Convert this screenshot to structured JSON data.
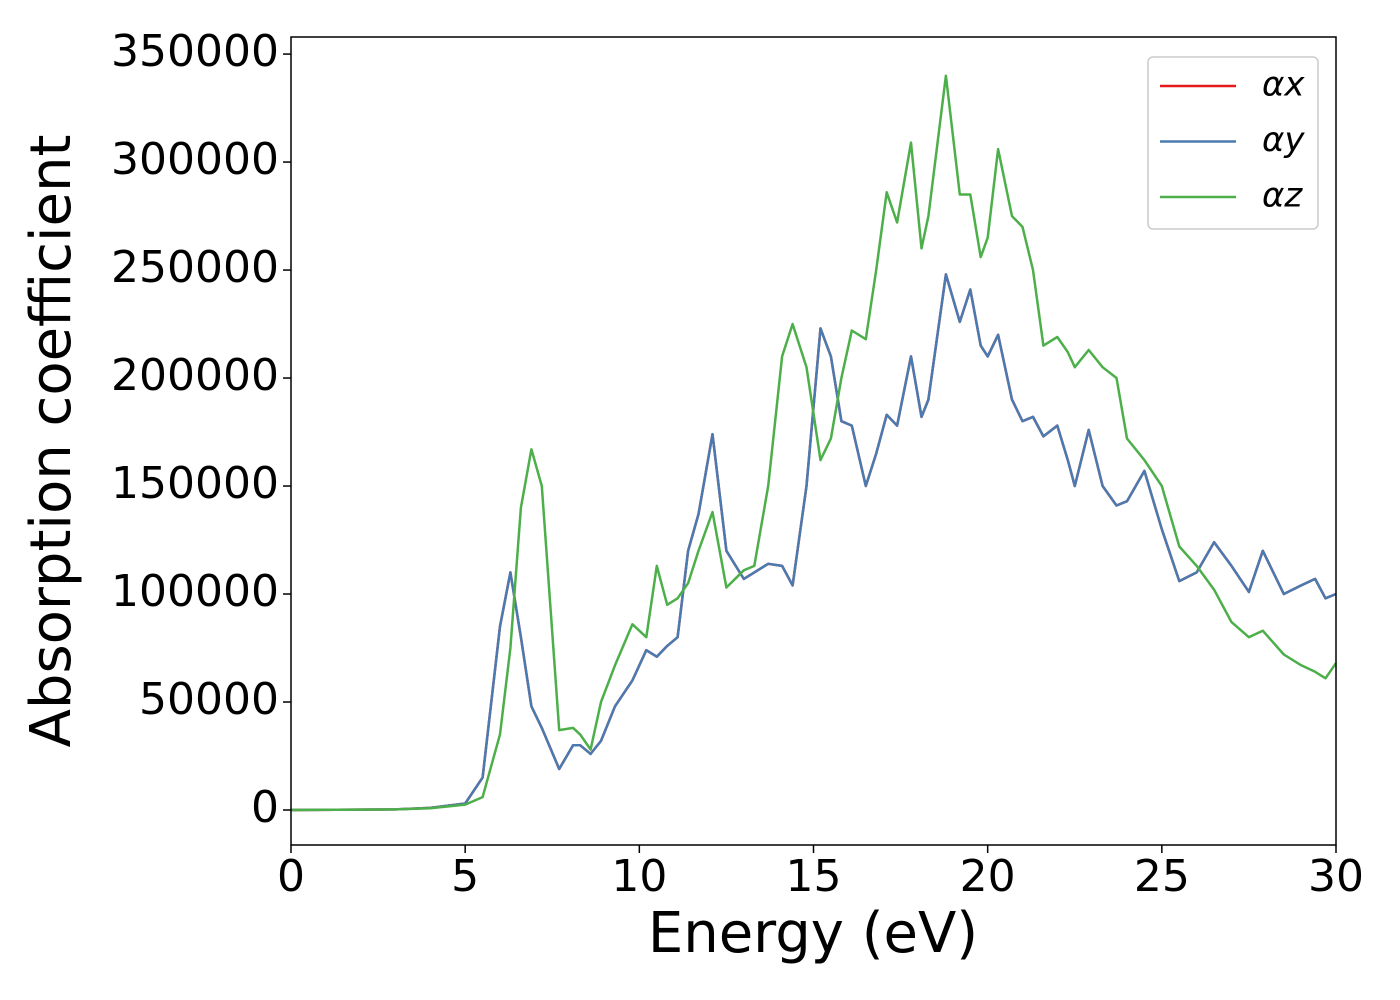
{
  "chart_data": {
    "type": "line",
    "xlabel": "Energy (eV)",
    "ylabel": "Absorption coefficient",
    "x": [
      0,
      3,
      4,
      5,
      5.5,
      6.0,
      6.3,
      6.6,
      6.9,
      7.2,
      7.7,
      8.1,
      8.3,
      8.6,
      8.9,
      9.3,
      9.8,
      10.2,
      10.5,
      10.8,
      11.1,
      11.4,
      11.7,
      12.1,
      12.5,
      13.0,
      13.3,
      13.7,
      14.1,
      14.4,
      14.8,
      15.2,
      15.5,
      15.8,
      16.1,
      16.5,
      16.8,
      17.1,
      17.4,
      17.8,
      18.1,
      18.3,
      18.8,
      19.2,
      19.5,
      19.8,
      20.0,
      20.3,
      20.7,
      21.0,
      21.3,
      21.6,
      22.0,
      22.3,
      22.5,
      22.9,
      23.3,
      23.7,
      24.0,
      24.5,
      25.0,
      25.5,
      26.0,
      26.5,
      27.0,
      27.5,
      27.9,
      28.5,
      29.0,
      29.4,
      29.7,
      30
    ],
    "series": [
      {
        "name": "αx",
        "color": "#e41a1c",
        "values": [
          0,
          300,
          1000,
          3000,
          15000,
          85000,
          110000,
          80000,
          48000,
          38000,
          19000,
          30000,
          30000,
          26000,
          32000,
          48000,
          60000,
          74000,
          71000,
          76000,
          80000,
          120000,
          137000,
          174000,
          120000,
          107000,
          110000,
          114000,
          113000,
          104000,
          150000,
          223000,
          210000,
          180000,
          178000,
          150000,
          165000,
          183000,
          178000,
          210000,
          182000,
          190000,
          248000,
          226000,
          241000,
          215000,
          210000,
          220000,
          190000,
          180000,
          182000,
          173000,
          178000,
          162000,
          150000,
          176000,
          150000,
          141000,
          143000,
          157000,
          130000,
          106000,
          110000,
          124000,
          113000,
          101000,
          120000,
          100000,
          104000,
          107000,
          98000,
          100000
        ]
      },
      {
        "name": "αy",
        "color": "#4a7bb0",
        "values": [
          0,
          300,
          1000,
          3000,
          15000,
          85000,
          110000,
          80000,
          48000,
          38000,
          19000,
          30000,
          30000,
          26000,
          32000,
          48000,
          60000,
          74000,
          71000,
          76000,
          80000,
          120000,
          137000,
          174000,
          120000,
          107000,
          110000,
          114000,
          113000,
          104000,
          150000,
          223000,
          210000,
          180000,
          178000,
          150000,
          165000,
          183000,
          178000,
          210000,
          182000,
          190000,
          248000,
          226000,
          241000,
          215000,
          210000,
          220000,
          190000,
          180000,
          182000,
          173000,
          178000,
          162000,
          150000,
          176000,
          150000,
          141000,
          143000,
          157000,
          130000,
          106000,
          110000,
          124000,
          113000,
          101000,
          120000,
          100000,
          104000,
          107000,
          98000,
          100000
        ]
      },
      {
        "name": "αz",
        "color": "#4daf4a",
        "values": [
          0,
          300,
          800,
          2500,
          6000,
          35000,
          75000,
          140000,
          167000,
          150000,
          37000,
          38000,
          35000,
          28000,
          50000,
          67000,
          86000,
          80000,
          113000,
          95000,
          98000,
          105000,
          120000,
          138000,
          103000,
          111000,
          113000,
          150000,
          210000,
          225000,
          205000,
          162000,
          172000,
          200000,
          222000,
          218000,
          250000,
          286000,
          272000,
          309000,
          260000,
          275000,
          340000,
          285000,
          285000,
          256000,
          265000,
          306000,
          275000,
          270000,
          250000,
          215000,
          219000,
          212000,
          205000,
          213000,
          205000,
          200000,
          172000,
          162000,
          150000,
          122000,
          113000,
          102000,
          87000,
          80000,
          83000,
          72000,
          67000,
          64000,
          61000,
          68000
        ]
      }
    ],
    "xlim": [
      0,
      30
    ],
    "xticks": [
      0,
      5,
      10,
      15,
      20,
      25,
      30
    ],
    "ylim": [
      -16200,
      357900
    ],
    "yticks": [
      0,
      50000,
      100000,
      150000,
      200000,
      250000,
      300000,
      350000
    ],
    "legend": "upper right"
  }
}
